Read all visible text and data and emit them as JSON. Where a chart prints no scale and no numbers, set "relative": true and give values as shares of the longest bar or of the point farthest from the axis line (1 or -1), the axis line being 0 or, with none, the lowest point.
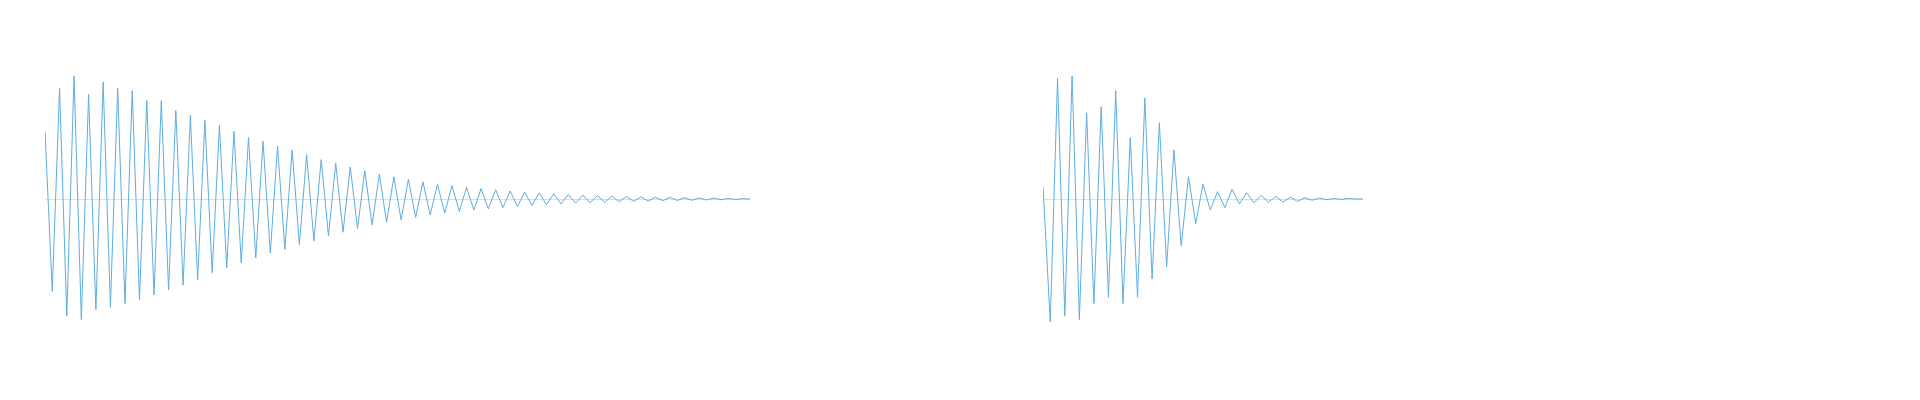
{
  "chart_data": [
    {
      "type": "line",
      "relative": true,
      "categories": [
        null,
        null,
        null,
        null,
        null,
        null,
        null,
        null,
        null,
        null,
        null,
        null,
        null,
        null,
        null,
        null,
        null,
        null,
        null,
        null,
        null,
        null,
        null,
        null,
        null,
        null,
        null,
        null,
        null,
        null,
        null,
        null,
        null,
        null,
        null,
        null,
        null,
        null,
        null,
        null,
        null,
        null,
        null,
        null,
        null,
        null,
        null,
        null,
        null,
        null,
        null,
        null,
        null,
        null,
        null,
        null,
        null,
        null,
        null,
        null,
        null,
        null,
        null,
        null,
        null,
        null,
        null,
        null,
        null,
        null,
        null,
        null,
        null,
        null,
        null,
        null,
        null,
        null,
        null,
        null,
        null,
        null,
        null,
        null,
        null,
        null,
        null,
        null,
        null,
        null,
        null,
        null,
        null,
        null,
        null,
        null,
        null,
        null
      ],
      "series": [
        {
          "color": "#5dade2",
          "values": [
            0.55,
            -0.75,
            0.9,
            -0.95,
            1,
            -0.98,
            0.85,
            -0.9,
            0.95,
            -0.88,
            0.9,
            -0.85,
            0.88,
            -0.82,
            0.8,
            -0.78,
            0.8,
            -0.74,
            0.72,
            -0.7,
            0.68,
            -0.66,
            0.64,
            -0.6,
            0.6,
            -0.56,
            0.55,
            -0.52,
            0.5,
            -0.48,
            0.47,
            -0.44,
            0.43,
            -0.41,
            0.4,
            -0.37,
            0.36,
            -0.34,
            0.32,
            -0.3,
            0.29,
            -0.27,
            0.26,
            -0.24,
            0.23,
            -0.21,
            0.2,
            -0.19,
            0.18,
            -0.17,
            0.16,
            -0.15,
            0.14,
            -0.13,
            0.12,
            -0.115,
            0.11,
            -0.1,
            0.095,
            -0.09,
            0.085,
            -0.08,
            0.075,
            -0.07,
            0.065,
            -0.06,
            0.056,
            -0.052,
            0.05,
            -0.046,
            0.043,
            -0.04,
            0.037,
            -0.034,
            0.032,
            -0.03,
            0.028,
            -0.026,
            0.024,
            -0.022,
            0.02,
            -0.019,
            0.018,
            -0.017,
            0.015,
            -0.014,
            0.013,
            -0.012,
            0.011,
            -0.01,
            0.009,
            -0.008,
            0.007,
            -0.006,
            0.005,
            -0.004,
            0.003,
            0
          ]
        }
      ]
    },
    {
      "type": "line",
      "relative": true,
      "categories": [
        null,
        null,
        null,
        null,
        null,
        null,
        null,
        null,
        null,
        null,
        null,
        null,
        null,
        null,
        null,
        null,
        null,
        null,
        null,
        null,
        null,
        null,
        null,
        null,
        null,
        null,
        null,
        null,
        null,
        null,
        null,
        null,
        null,
        null,
        null,
        null,
        null,
        null,
        null,
        null,
        null,
        null,
        null,
        null,
        null
      ],
      "series": [
        {
          "color": "#5dade2",
          "values": [
            0.1,
            -1,
            0.98,
            -0.95,
            1,
            -0.98,
            0.7,
            -0.85,
            0.75,
            -0.8,
            0.88,
            -0.85,
            0.5,
            -0.8,
            0.82,
            -0.65,
            0.62,
            -0.55,
            0.4,
            -0.38,
            0.18,
            -0.2,
            0.12,
            -0.09,
            0.06,
            -0.07,
            0.08,
            -0.04,
            0.05,
            -0.03,
            0.03,
            -0.025,
            0.02,
            -0.025,
            0.015,
            -0.02,
            0.01,
            -0.01,
            0.008,
            -0.005,
            0.004,
            -0.003,
            0.005,
            0,
            0
          ]
        }
      ]
    }
  ]
}
